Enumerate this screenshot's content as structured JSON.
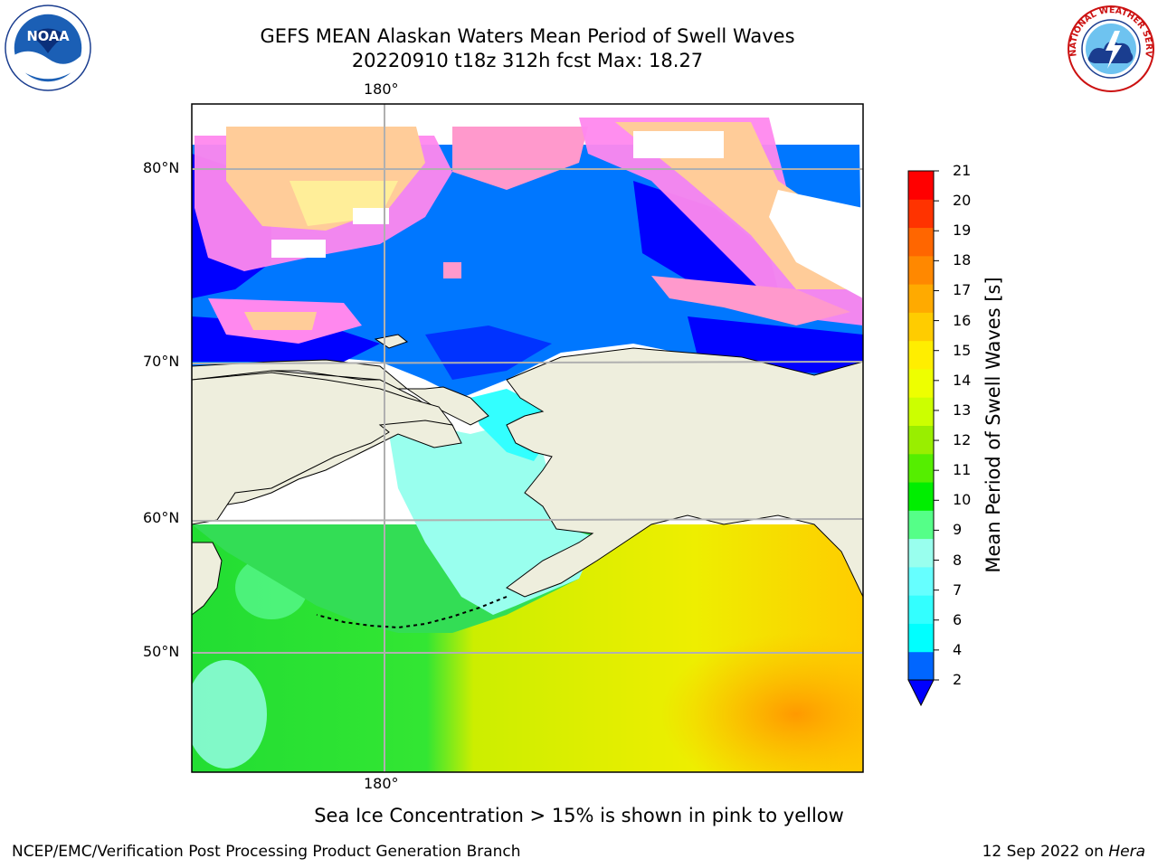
{
  "title": {
    "line1": "GEFS MEAN Alaskan Waters Mean Period of Swell Waves",
    "line2": "20220910 t18z 312h fcst   Max: 18.27"
  },
  "map": {
    "lon_label_top": "180°",
    "lon_label_bottom": "180°",
    "lat_labels": [
      "80°N",
      "70°N",
      "60°N",
      "50°N"
    ],
    "land_color": "#eeeedd",
    "ice_colors": [
      "#ff66ff",
      "#ff99cc",
      "#ffcc88",
      "#ffee99"
    ]
  },
  "colorbar": {
    "label": "Mean Period of Swell Waves [s]",
    "ticks": [
      "2",
      "4",
      "6",
      "7",
      "8",
      "9",
      "10",
      "11",
      "12",
      "13",
      "14",
      "15",
      "16",
      "17",
      "18",
      "19",
      "20",
      "21"
    ],
    "colors": [
      "#0066ff",
      "#00ffff",
      "#33ffff",
      "#66ffff",
      "#99ffee",
      "#55ff88",
      "#00ee00",
      "#55ee00",
      "#99ee00",
      "#ccff00",
      "#eeff00",
      "#ffee00",
      "#ffcc00",
      "#ffaa00",
      "#ff8800",
      "#ff6600",
      "#ff3300",
      "#ff0000"
    ],
    "under_color": "#0000ff"
  },
  "ice_note": "Sea Ice Concentration > 15% is shown in pink to yellow",
  "footer": {
    "left": "NCEP/EMC/Verification Post Processing Product Generation Branch",
    "date": "12 Sep 2022 on",
    "machine": "Hera"
  },
  "logos": {
    "noaa_text": "NOAA",
    "nws_text": "NATIONAL WEATHER SERVICE"
  }
}
